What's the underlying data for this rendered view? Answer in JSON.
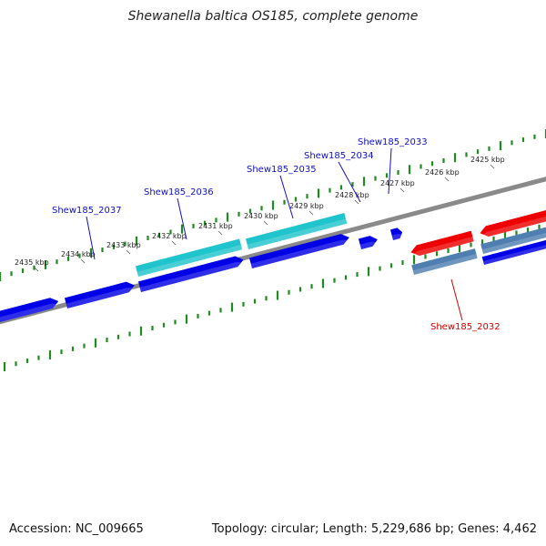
{
  "title": "Shewanella baltica OS185, complete genome",
  "accession": "Accession: NC_009665",
  "stats": "Topology: circular; Length: 5,229,686 bp; Genes: 4,462",
  "colors": {
    "backbone": "#8a8a8a",
    "forward_cds": "#0000e6",
    "reverse_cds": "#ee0000",
    "rna_light": "#20c4cc",
    "rna_dark": "#4f7fb0",
    "ticks": "#1f8a1f",
    "blue_label": "#1010c0",
    "red_label": "#cc0000"
  },
  "scale_labels": [
    "2435 kbp",
    "2434 kbp",
    "2433 kbp",
    "2432 kbp",
    "2431 kbp",
    "2430 kbp",
    "2429 kbp",
    "2428 kbp",
    "2427 kbp",
    "2426 kbp",
    "2425 kbp"
  ],
  "gene_labels": [
    {
      "text": "Shew185_2037",
      "color": "blue"
    },
    {
      "text": "Shew185_2036",
      "color": "blue"
    },
    {
      "text": "Shew185_2035",
      "color": "blue"
    },
    {
      "text": "Shew185_2034",
      "color": "blue"
    },
    {
      "text": "Shew185_2033",
      "color": "blue"
    },
    {
      "text": "Shew185_2032",
      "color": "red"
    }
  ]
}
